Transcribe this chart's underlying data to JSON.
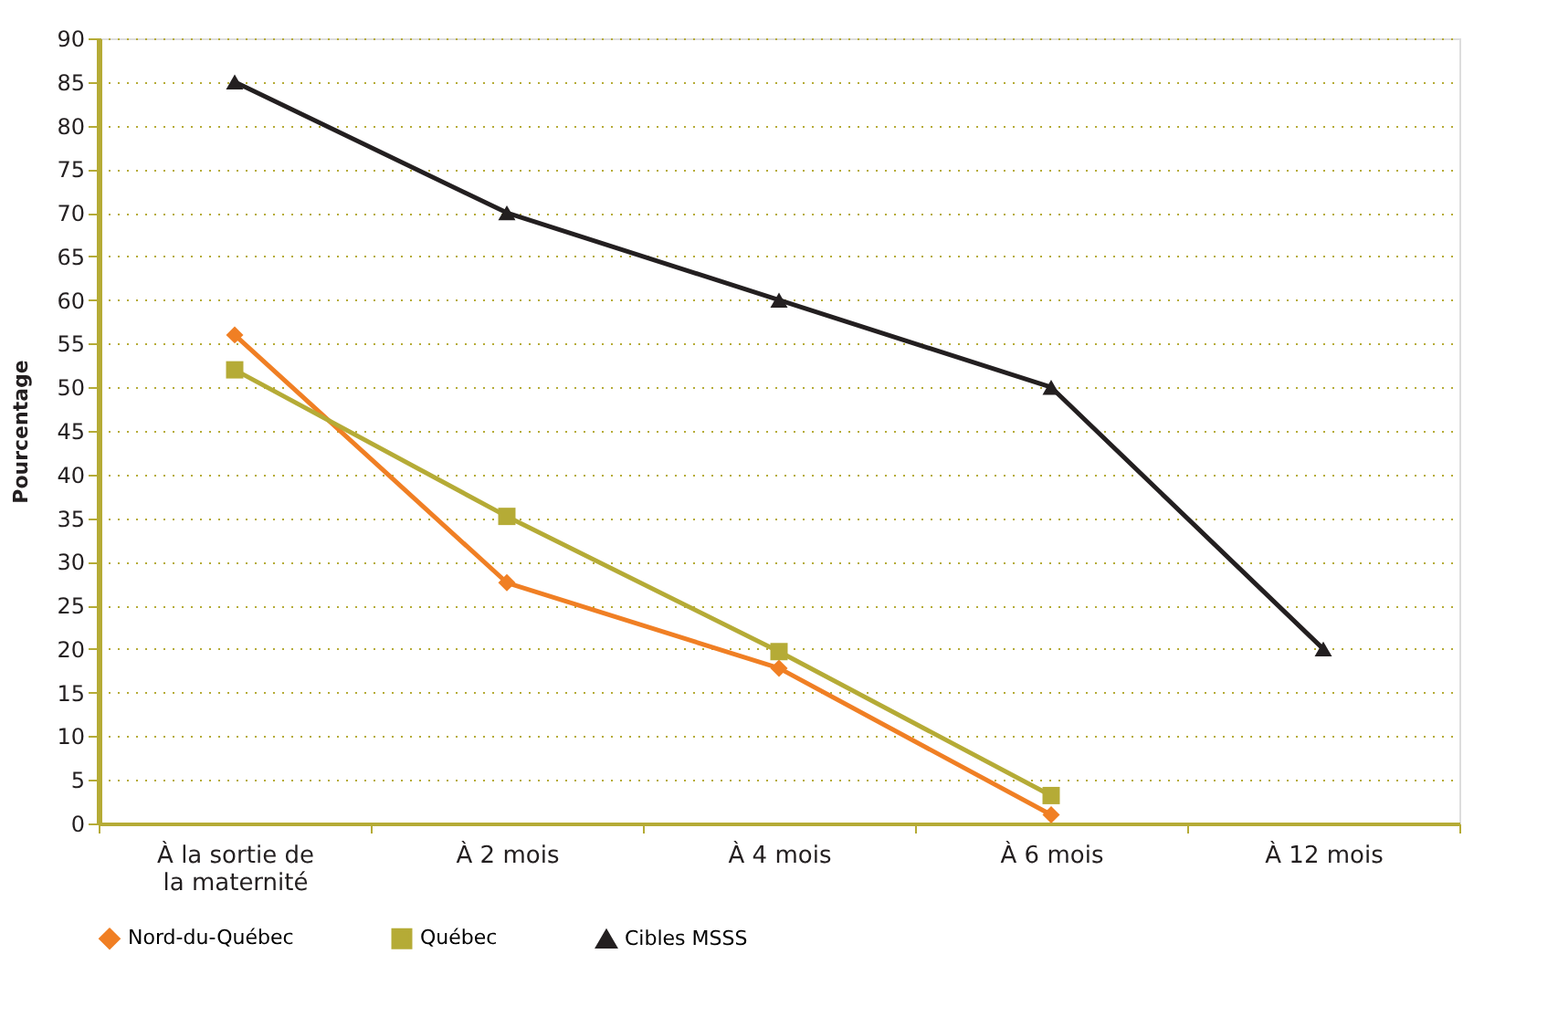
{
  "chart_data": {
    "type": "line",
    "ylabel": "Pourcentage",
    "categories": [
      "À la sortie de\nla maternité",
      "À 2 mois",
      "À 4 mois",
      "À 6 mois",
      "À 12 mois"
    ],
    "series": [
      {
        "name": "Nord-du-Québec",
        "color": "#f07f24",
        "marker": "diamond",
        "values": [
          56,
          27.6,
          17.8,
          1,
          null
        ]
      },
      {
        "name": "Québec",
        "color": "#b5ab36",
        "marker": "square",
        "values": [
          52,
          35.2,
          19.7,
          3.2,
          null
        ]
      },
      {
        "name": "Cibles MSSS",
        "color": "#231f20",
        "marker": "triangle",
        "values": [
          85,
          70,
          60,
          50,
          20
        ]
      }
    ],
    "ylim": [
      0,
      90
    ],
    "yticks": [
      0,
      5,
      10,
      15,
      20,
      25,
      30,
      35,
      40,
      45,
      50,
      55,
      60,
      65,
      70,
      75,
      80,
      85,
      90
    ],
    "grid": "y",
    "legend": "bottom",
    "line_style": "solid"
  }
}
